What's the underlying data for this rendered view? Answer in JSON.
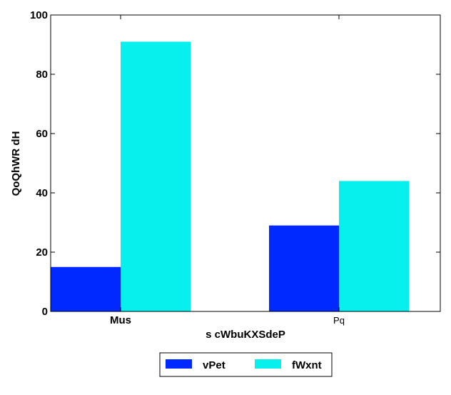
{
  "chart_data": {
    "type": "bar",
    "title": "",
    "xlabel": "s cWbuKXSdeP",
    "ylabel": "QoQhWR dH",
    "categories": [
      "Mus",
      "Pq"
    ],
    "series": [
      {
        "name": "vPet",
        "values": [
          15,
          29
        ],
        "color": "#0029ff"
      },
      {
        "name": "fWxnt",
        "values": [
          91,
          44
        ],
        "color": "#08f0ee"
      }
    ],
    "ylim": [
      0,
      100
    ],
    "yticks": [
      0,
      20,
      40,
      60,
      80,
      100
    ],
    "grid": false,
    "legend_position": "bottom-center"
  }
}
